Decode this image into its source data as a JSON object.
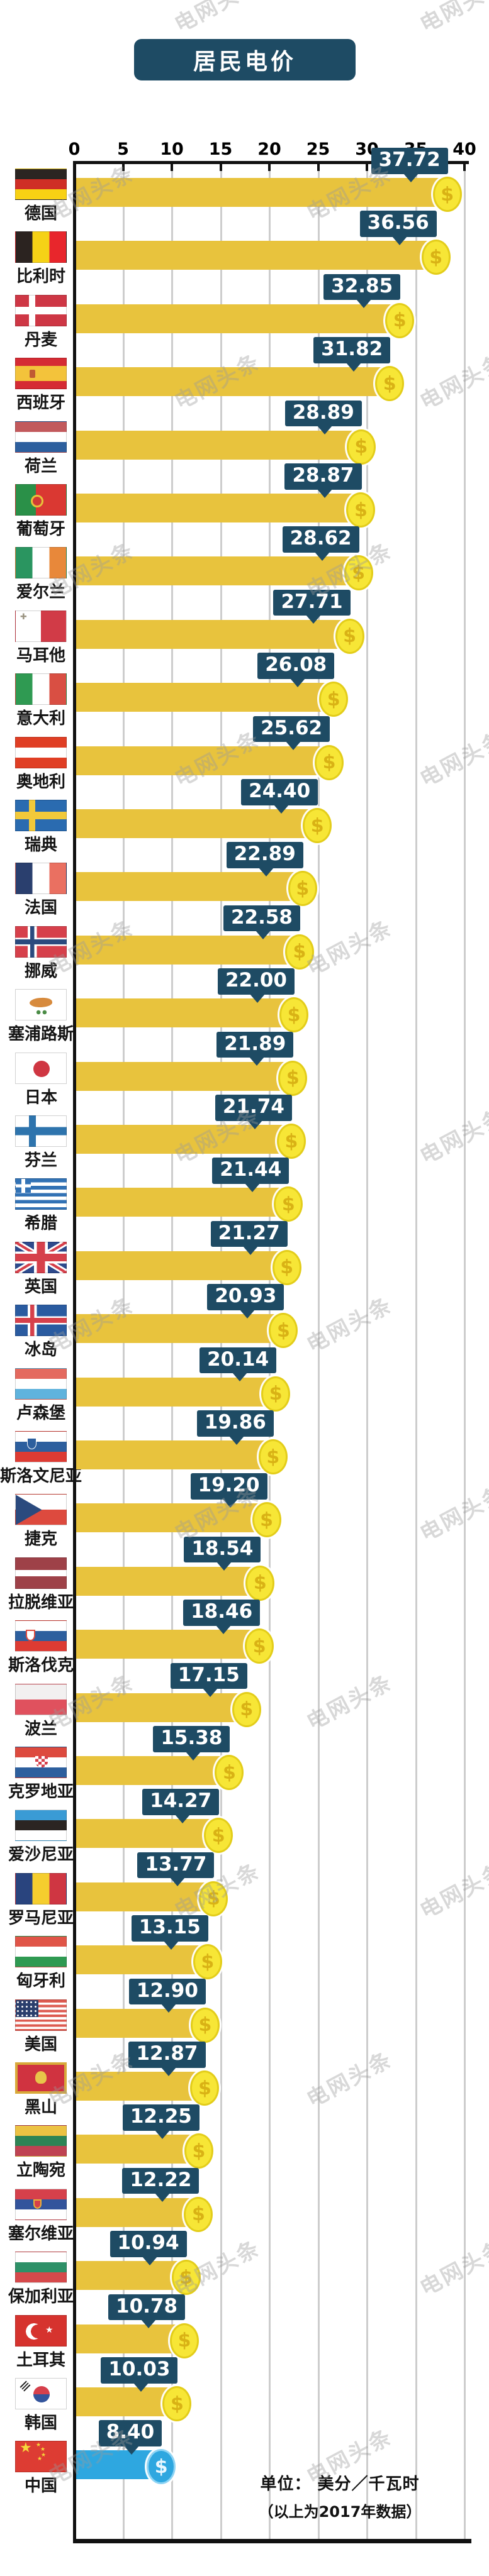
{
  "title": "居民电价",
  "watermark_text": "电网头条",
  "icons": {
    "coin_symbol": "$"
  },
  "colors": {
    "navy": "#1E4B64",
    "bar_yellow": "#E8C33D",
    "bar_blue": "#2EA7E0",
    "coin_yellow": "#F7E636",
    "coin_blue": "#2EA7E0",
    "gridline": "#CDCDCD",
    "axis": "#111111"
  },
  "axis": {
    "ticks": [
      "0",
      "5",
      "10",
      "15",
      "20",
      "25",
      "30",
      "35",
      "40"
    ],
    "min": 0,
    "max": 40
  },
  "footer": {
    "line1": "单位： 美分／千瓦时",
    "line2": "（以上为2017年数据）"
  },
  "chart_data": {
    "type": "bar",
    "orientation": "horizontal",
    "title": "居民电价",
    "xlabel": "美分/千瓦时",
    "note": "以上为2017年数据",
    "xlim": [
      0,
      40
    ],
    "grid": true,
    "categories": [
      "德国",
      "比利时",
      "丹麦",
      "西班牙",
      "荷兰",
      "葡萄牙",
      "爱尔兰",
      "马耳他",
      "意大利",
      "奥地利",
      "瑞典",
      "法国",
      "挪威",
      "塞浦路斯",
      "日本",
      "芬兰",
      "希腊",
      "英国",
      "冰岛",
      "卢森堡",
      "斯洛文尼亚",
      "捷克",
      "拉脱维亚",
      "斯洛伐克",
      "波兰",
      "克罗地亚",
      "爱沙尼亚",
      "罗马尼亚",
      "匈牙利",
      "美国",
      "黑山",
      "立陶宛",
      "塞尔维亚",
      "保加利亚",
      "土耳其",
      "韩国",
      "中国"
    ],
    "values": [
      37.72,
      36.56,
      32.85,
      31.82,
      28.89,
      28.87,
      28.62,
      27.71,
      26.08,
      25.62,
      24.4,
      22.89,
      22.58,
      22.0,
      21.89,
      21.74,
      21.44,
      21.27,
      20.93,
      20.14,
      19.86,
      19.2,
      18.54,
      18.46,
      17.15,
      15.38,
      14.27,
      13.77,
      13.15,
      12.9,
      12.87,
      12.25,
      12.22,
      10.94,
      10.78,
      10.03,
      8.4
    ],
    "value_labels": [
      "37.72",
      "36.56",
      "32.85",
      "31.82",
      "28.89",
      "28.87",
      "28.62",
      "27.71",
      "26.08",
      "25.62",
      "24.40",
      "22.89",
      "22.58",
      "22.00",
      "21.89",
      "21.74",
      "21.44",
      "21.27",
      "20.93",
      "20.14",
      "19.86",
      "19.20",
      "18.54",
      "18.46",
      "17.15",
      "15.38",
      "14.27",
      "13.77",
      "13.15",
      "12.90",
      "12.87",
      "12.25",
      "12.22",
      "10.94",
      "10.78",
      "10.03",
      "8.40"
    ],
    "flags": [
      "de",
      "be",
      "dk",
      "es",
      "nl",
      "pt",
      "ie",
      "mt",
      "it",
      "at",
      "se",
      "fr",
      "no",
      "cy",
      "jp",
      "fi",
      "gr",
      "gb",
      "is",
      "lu",
      "si",
      "cz",
      "lv",
      "sk",
      "pl",
      "hr",
      "ee",
      "ro",
      "hu",
      "us",
      "me",
      "lt",
      "rs",
      "bg",
      "tr",
      "kr",
      "cn"
    ],
    "highlight_index": 36
  }
}
